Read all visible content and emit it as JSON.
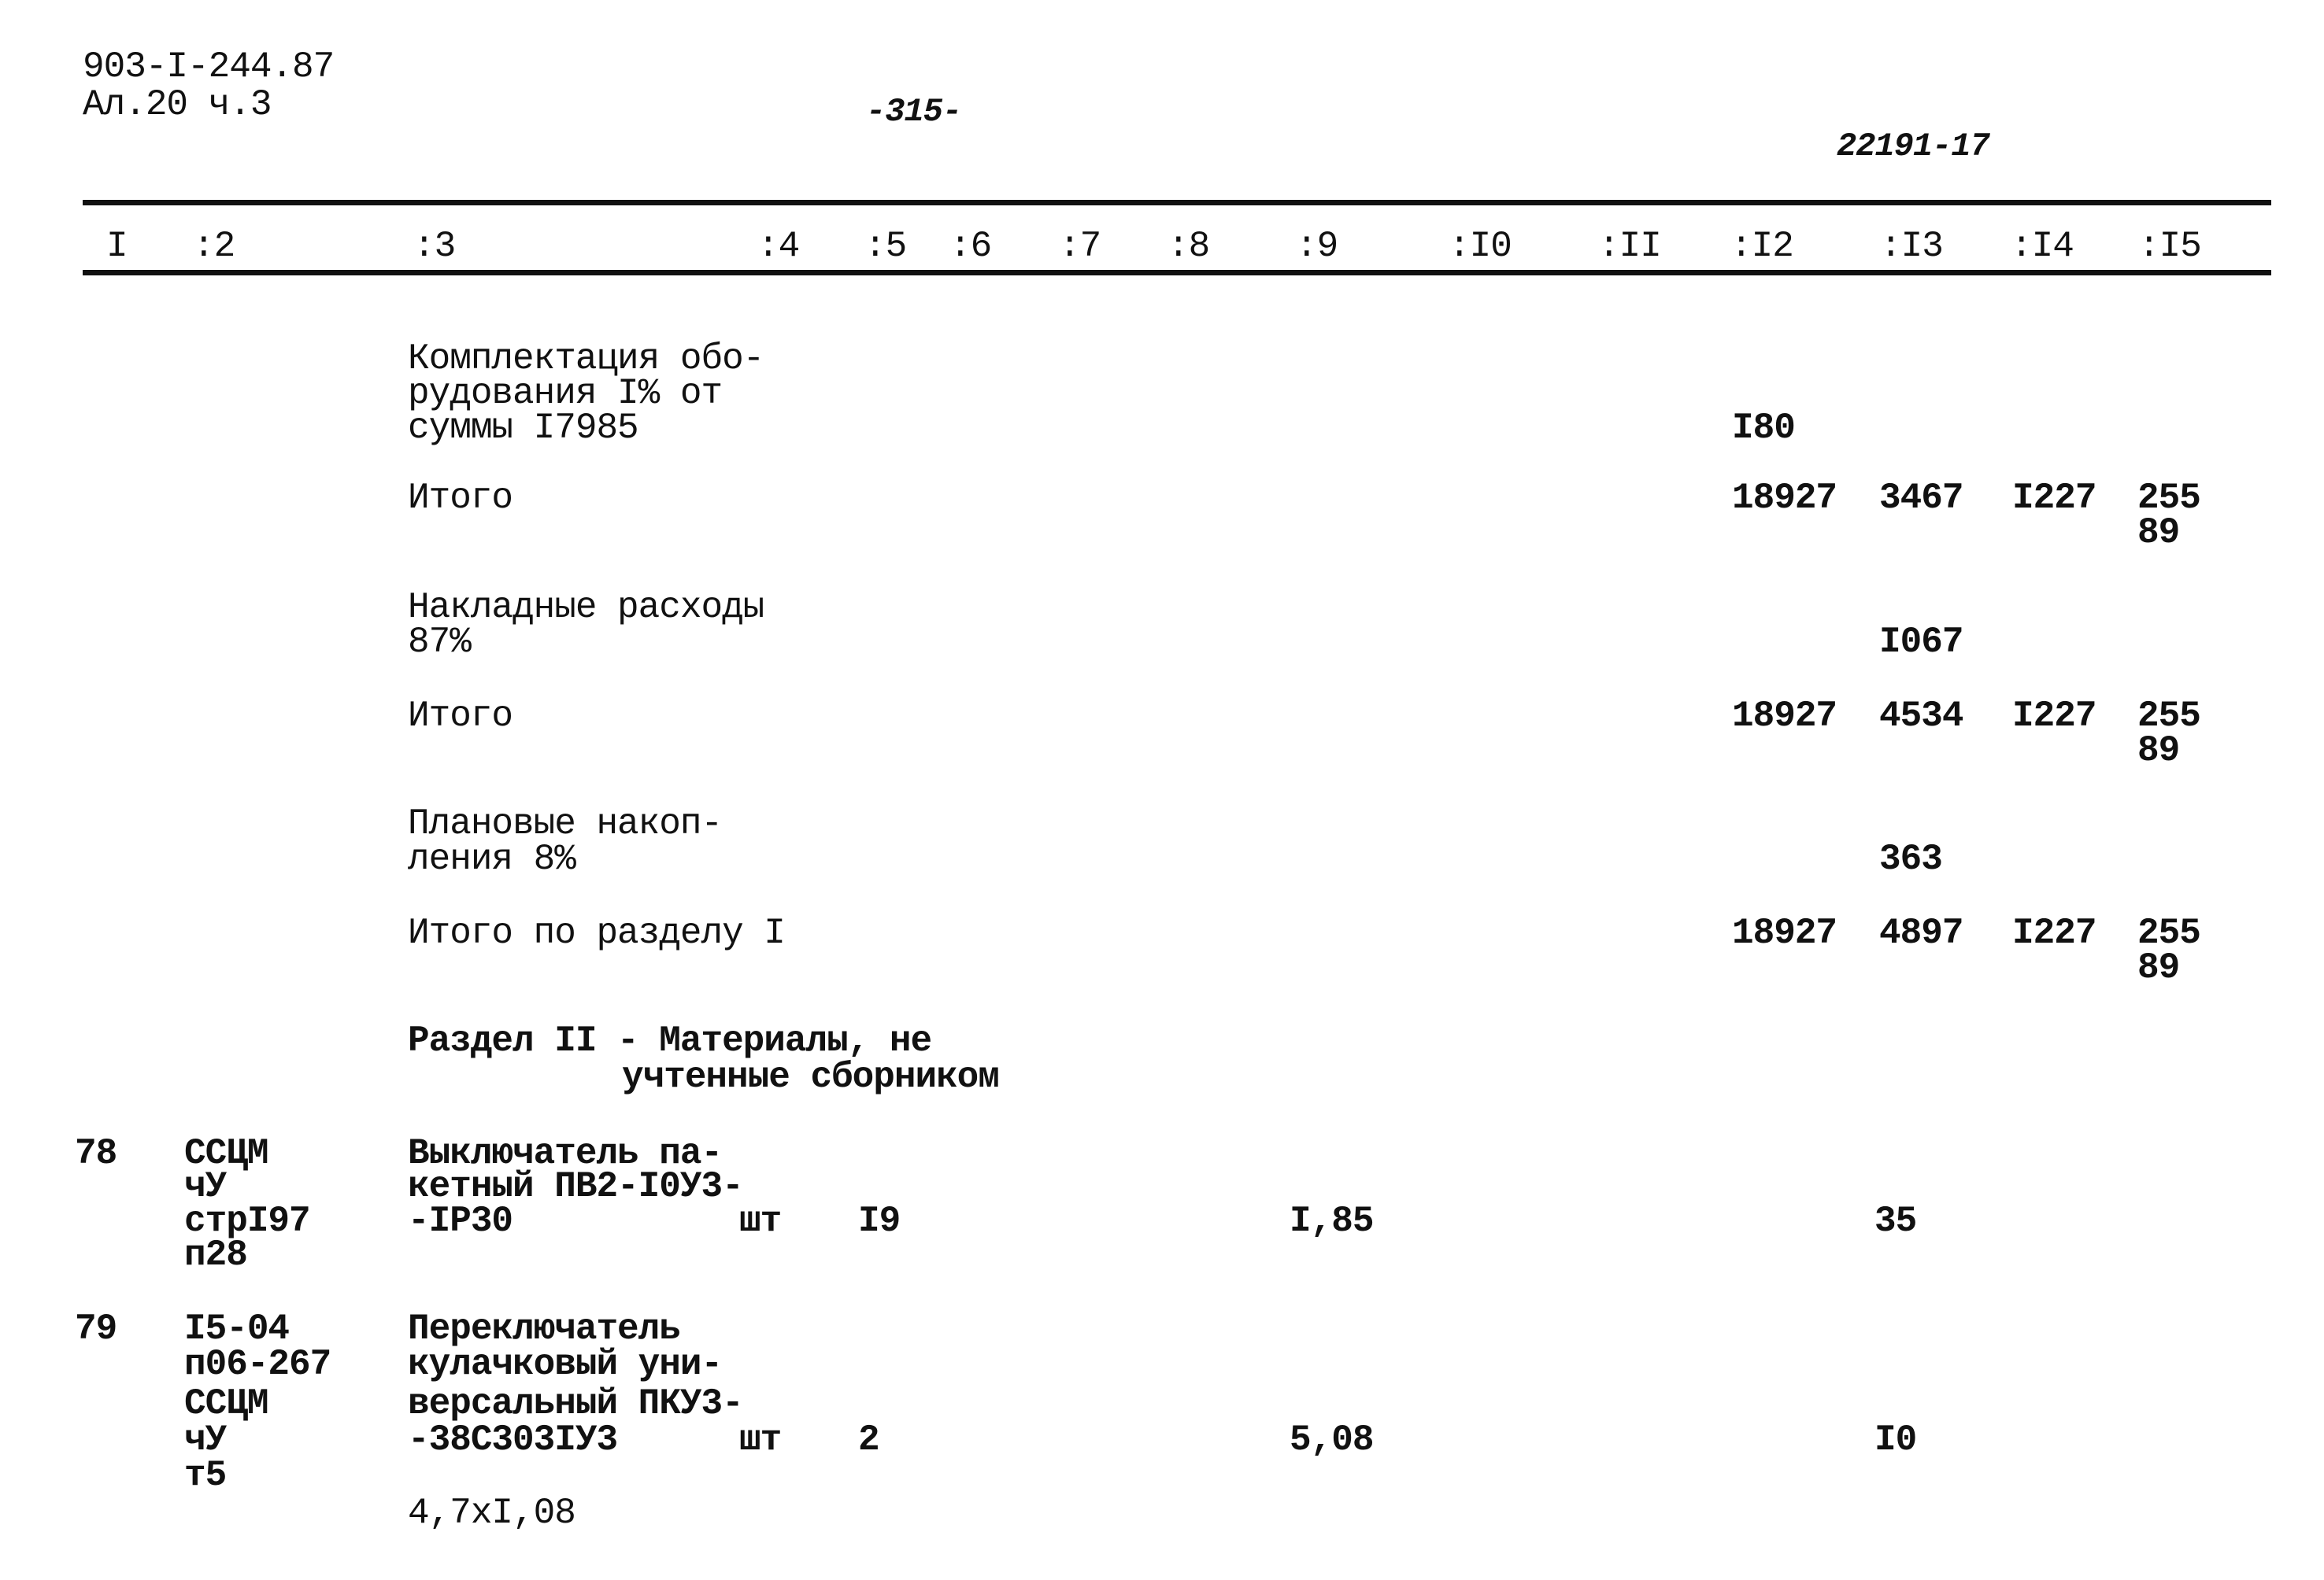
{
  "header": {
    "doc_code": "903-I-244.87",
    "album": "Ал.20 ч.3",
    "page_number": "-315-",
    "inventory_number": "22191-17"
  },
  "columns": [
    "I",
    ":2",
    ":3",
    ":4",
    ":5",
    ":6",
    ":7",
    ":8",
    ":9",
    ":I0",
    ":II",
    ":I2",
    ":I3",
    ":I4",
    ":I5"
  ],
  "rows": {
    "equip": {
      "lines": [
        "Комплектация обо-",
        "рудования I% от",
        "суммы I7985"
      ],
      "c12": "I80"
    },
    "total1": {
      "label": "Итого",
      "c12": "18927",
      "c13": "3467",
      "c14": "I227",
      "c15a": "255",
      "c15b": "89"
    },
    "overhead": {
      "lines": [
        "Накладные расходы",
        "87%"
      ],
      "c13": "I067"
    },
    "total2": {
      "label": "Итого",
      "c12": "18927",
      "c13": "4534",
      "c14": "I227",
      "c15a": "255",
      "c15b": "89"
    },
    "planned": {
      "lines": [
        "Плановые накоп-",
        "ления 8%"
      ],
      "c13": "363"
    },
    "total3": {
      "label": "Итого по разделу I",
      "c12": "18927",
      "c13": "4897",
      "c14": "I227",
      "c15a": "255",
      "c15b": "89"
    },
    "section2": {
      "lines": [
        "Раздел II - Материалы, не",
        "учтенные сборником"
      ]
    },
    "item78": {
      "num": "78",
      "code": [
        "ССЦМ",
        "чУ",
        "стрI97",
        "п28"
      ],
      "desc": [
        "Выключатель па-",
        "кетный ПВ2-I0У3-",
        "-IP30"
      ],
      "unit": "шт",
      "qty": "I9",
      "price": "I,85",
      "c13": "35"
    },
    "item79": {
      "num": "79",
      "code": [
        "I5-04",
        "п06-267",
        "ССЦМ",
        "чУ",
        "т5"
      ],
      "desc": [
        "Переключатель",
        "кулачковый уни-",
        "версальный ПКУ3-",
        "-38С303IУ3"
      ],
      "unit": "шт",
      "qty": "2",
      "price": "5,08",
      "c13": "I0",
      "calc": "4,7xI,08"
    }
  }
}
